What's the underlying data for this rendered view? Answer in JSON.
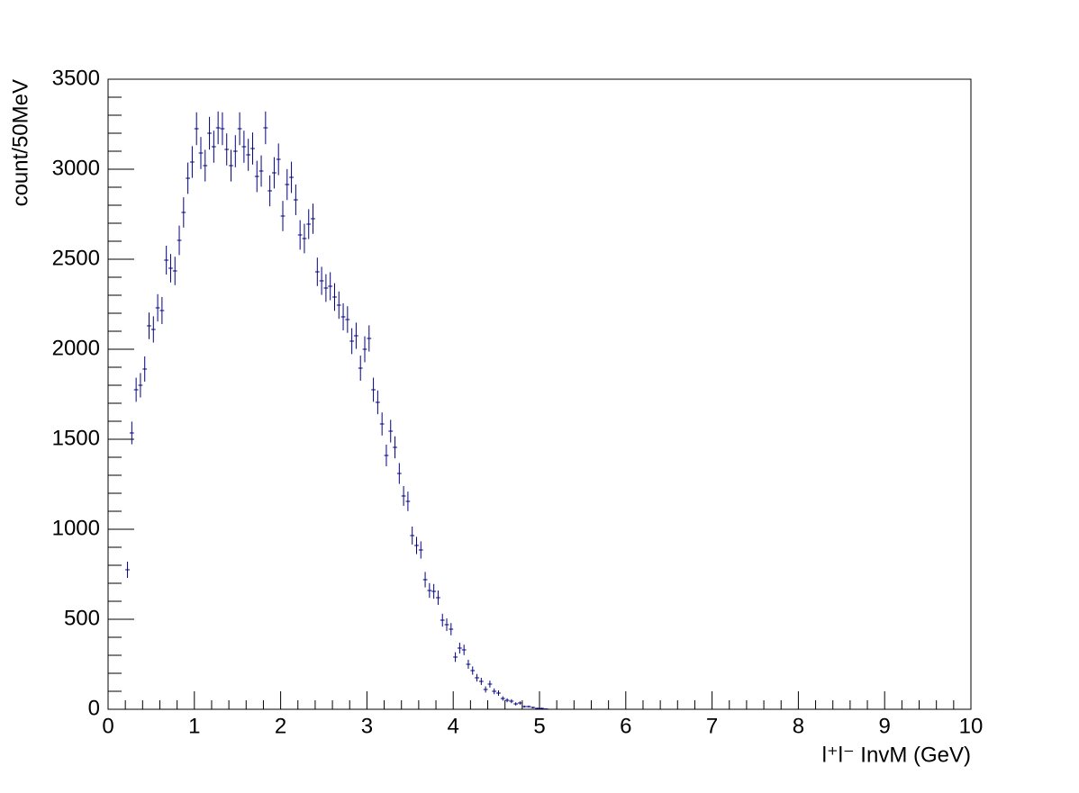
{
  "chart_data": {
    "type": "errorbar",
    "xlabel": "l⁺l⁻ InvM (GeV)",
    "ylabel": "count/50MeV",
    "color": "#000080",
    "xlim": [
      0,
      10
    ],
    "ylim": [
      0,
      3500
    ],
    "xticks": [
      0,
      1,
      2,
      3,
      4,
      5,
      6,
      7,
      8,
      9,
      10
    ],
    "yticks": [
      0,
      500,
      1000,
      1500,
      2000,
      2500,
      3000,
      3500
    ],
    "xminorticks": [
      0.2,
      0.4,
      0.6,
      0.8,
      1.2,
      1.4,
      1.6,
      1.8,
      2.2,
      2.4,
      2.6,
      2.8,
      3.2,
      3.4,
      3.6,
      3.8,
      4.2,
      4.4,
      4.6,
      4.8,
      5.2,
      5.4,
      5.6,
      5.8,
      6.2,
      6.4,
      6.6,
      6.8,
      7.2,
      7.4,
      7.6,
      7.8,
      8.2,
      8.4,
      8.6,
      8.8,
      9.2,
      9.4,
      9.6,
      9.8
    ],
    "yminorticks": [
      100,
      200,
      300,
      400,
      600,
      700,
      800,
      900,
      1100,
      1200,
      1300,
      1400,
      1600,
      1700,
      1800,
      1900,
      2100,
      2200,
      2300,
      2400,
      2600,
      2700,
      2800,
      2900,
      3100,
      3200,
      3300,
      3400
    ],
    "xerr": 0.025,
    "x": [
      0.225,
      0.275,
      0.325,
      0.375,
      0.425,
      0.475,
      0.525,
      0.575,
      0.625,
      0.675,
      0.725,
      0.775,
      0.825,
      0.875,
      0.925,
      0.975,
      1.025,
      1.075,
      1.125,
      1.175,
      1.225,
      1.275,
      1.325,
      1.375,
      1.425,
      1.475,
      1.525,
      1.575,
      1.625,
      1.675,
      1.725,
      1.775,
      1.825,
      1.875,
      1.925,
      1.975,
      2.025,
      2.075,
      2.125,
      2.175,
      2.225,
      2.275,
      2.325,
      2.375,
      2.425,
      2.475,
      2.525,
      2.575,
      2.625,
      2.675,
      2.725,
      2.775,
      2.825,
      2.875,
      2.925,
      2.975,
      3.025,
      3.075,
      3.125,
      3.175,
      3.225,
      3.275,
      3.325,
      3.375,
      3.425,
      3.475,
      3.525,
      3.575,
      3.625,
      3.675,
      3.725,
      3.775,
      3.825,
      3.875,
      3.925,
      3.975,
      4.025,
      4.075,
      4.125,
      4.175,
      4.225,
      4.275,
      4.325,
      4.375,
      4.425,
      4.475,
      4.525,
      4.575,
      4.625,
      4.675,
      4.725,
      4.775,
      4.825,
      4.875,
      4.925,
      4.975,
      5.025,
      5.075
    ],
    "values": [
      775,
      1535,
      1775,
      1800,
      1890,
      2130,
      2110,
      2230,
      2215,
      2495,
      2450,
      2435,
      2605,
      2760,
      2950,
      3040,
      3225,
      3090,
      3020,
      3200,
      3125,
      3230,
      3225,
      3110,
      3020,
      3100,
      3225,
      3125,
      3080,
      3115,
      2960,
      2990,
      3230,
      2880,
      2980,
      3055,
      2740,
      2915,
      2955,
      2830,
      2635,
      2615,
      2695,
      2725,
      2430,
      2380,
      2340,
      2350,
      2290,
      2245,
      2180,
      2165,
      2045,
      2075,
      1895,
      2000,
      2060,
      1775,
      1705,
      1585,
      1410,
      1545,
      1455,
      1310,
      1185,
      1155,
      965,
      910,
      885,
      720,
      660,
      655,
      620,
      495,
      470,
      445,
      290,
      340,
      330,
      250,
      215,
      175,
      155,
      110,
      140,
      100,
      90,
      60,
      50,
      45,
      30,
      35,
      15,
      15,
      10,
      5,
      5,
      2
    ],
    "errors": [
      45,
      63,
      67,
      68,
      70,
      74,
      73,
      76,
      75,
      80,
      79,
      79,
      82,
      84,
      87,
      88,
      91,
      89,
      88,
      91,
      89,
      91,
      91,
      89,
      88,
      89,
      91,
      89,
      89,
      89,
      87,
      87,
      91,
      86,
      87,
      88,
      84,
      86,
      87,
      85,
      82,
      82,
      83,
      84,
      79,
      78,
      77,
      78,
      77,
      76,
      75,
      74,
      72,
      73,
      70,
      72,
      73,
      67,
      66,
      64,
      60,
      63,
      61,
      58,
      55,
      54,
      50,
      48,
      48,
      43,
      41,
      41,
      40,
      36,
      35,
      34,
      27,
      30,
      29,
      25,
      23,
      21,
      20,
      17,
      19,
      16,
      15,
      12,
      11,
      11,
      9,
      9,
      6,
      6,
      5,
      4,
      4,
      2
    ]
  }
}
